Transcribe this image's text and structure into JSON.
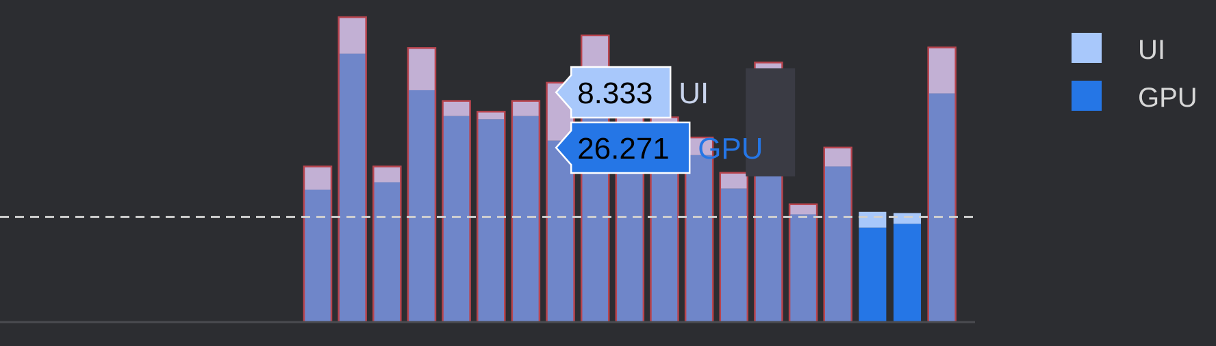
{
  "chart_data": {
    "type": "bar",
    "stacked": true,
    "threshold": 16.67,
    "ylim": [
      0,
      47
    ],
    "series": [
      {
        "name": "GPU",
        "color": "#2576e6",
        "values": [
          21.0,
          42.6,
          22.2,
          36.8,
          32.7,
          32.2,
          32.7,
          28.8,
          40.5,
          30.5,
          30.8,
          26.5,
          21.2,
          35.0,
          17.1,
          24.7,
          15.0,
          15.6,
          36.3
        ]
      },
      {
        "name": "UI",
        "color": "#a8c8fb",
        "values": [
          3.7,
          5.8,
          2.5,
          6.7,
          2.4,
          1.2,
          2.4,
          9.2,
          5.0,
          2.7,
          1.7,
          2.8,
          2.5,
          6.2,
          1.6,
          3.0,
          2.5,
          1.7,
          7.3
        ]
      }
    ],
    "janky": [
      true,
      true,
      true,
      true,
      true,
      true,
      true,
      true,
      true,
      true,
      true,
      true,
      true,
      true,
      true,
      true,
      false,
      false,
      true
    ],
    "highlight_index": 8,
    "tooltip": [
      {
        "series": "UI",
        "value": "8.333"
      },
      {
        "series": "GPU",
        "value": "26.271"
      }
    ],
    "legend": [
      {
        "label": "UI",
        "color": "#a8c8fb"
      },
      {
        "label": "GPU",
        "color": "#2576e6"
      }
    ],
    "legend_position": "top-right",
    "grid": false
  }
}
